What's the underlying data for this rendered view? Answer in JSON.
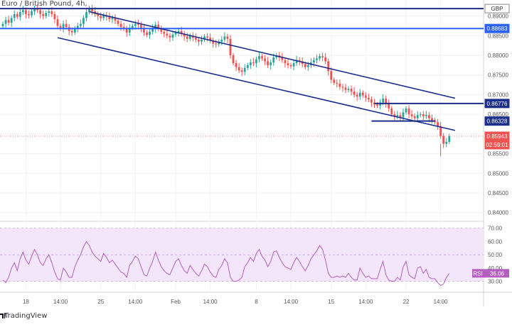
{
  "header": {
    "title": "Euro / British Pound, 4h,"
  },
  "footer": {
    "brand": "TradingView"
  },
  "colors": {
    "up": "#26a69a",
    "down": "#ef5350",
    "channel": "#1b2e8a",
    "hline_blue": "#2962ff",
    "hline_navy": "#1b2e8a",
    "rsi_line": "#b45fc0",
    "rsi_band": "#f3e6fb",
    "current_price": "#ef5350"
  },
  "chart_data": [
    {
      "type": "candlestick",
      "title": "Euro / British Pound, 4h,",
      "y_axis": {
        "ticks": [
          0.89,
          0.885,
          0.88,
          0.875,
          0.87,
          0.865,
          0.86,
          0.855,
          0.85,
          0.845,
          0.84
        ],
        "tick_labels": [
          "0.89000",
          "0.88500",
          "0.88000",
          "0.87500",
          "0.87000",
          "0.86500",
          "0.86000",
          "0.85500",
          "0.85000",
          "0.84500",
          "0.84000"
        ],
        "range": [
          0.8385,
          0.893
        ]
      },
      "x_axis": {
        "tick_labels": [
          "18",
          "14:00",
          "25",
          "14:00",
          "Feb",
          "14:00",
          "8",
          "14:00",
          "15",
          "14:00",
          "22",
          "14:00"
        ]
      },
      "price_labels": [
        {
          "label": "GBP",
          "kind": "currency"
        },
        {
          "label": "0.88683",
          "value": 0.88683,
          "kind": "hline_blue"
        },
        {
          "label": "0.86776",
          "value": 0.86776,
          "kind": "hline_navy"
        },
        {
          "label": "0.86328",
          "value": 0.86328,
          "kind": "hline_navy"
        },
        {
          "label": "0.85943",
          "value": 0.85943,
          "kind": "current"
        },
        {
          "label": "02:59:01",
          "kind": "countdown"
        }
      ],
      "horizontal_lines": [
        {
          "value": 0.8919,
          "color": "navy"
        },
        {
          "value": 0.88683,
          "color": "blue"
        },
        {
          "value": 0.86776,
          "color": "navy",
          "from_bar": 129
        },
        {
          "value": 0.86328,
          "color": "navy",
          "from_bar": 128,
          "to_bar": 150
        }
      ],
      "channel": {
        "upper": [
          {
            "bar": 30,
            "y": 0.8911
          },
          {
            "bar": 157,
            "y": 0.8691
          }
        ],
        "lower": [
          {
            "bar": 19,
            "y": 0.8845
          },
          {
            "bar": 157,
            "y": 0.8609
          }
        ]
      },
      "closes": [
        0.888,
        0.889,
        0.8883,
        0.8895,
        0.8905,
        0.8898,
        0.891,
        0.8915,
        0.8905,
        0.8902,
        0.8912,
        0.8918,
        0.8915,
        0.8905,
        0.89,
        0.8908,
        0.8912,
        0.8905,
        0.8892,
        0.8875,
        0.8868,
        0.888,
        0.8872,
        0.8862,
        0.8858,
        0.8868,
        0.8875,
        0.888,
        0.8895,
        0.891,
        0.892,
        0.8912,
        0.8905,
        0.89,
        0.8895,
        0.8902,
        0.8898,
        0.8892,
        0.8895,
        0.8888,
        0.888,
        0.8872,
        0.8868,
        0.8858,
        0.887,
        0.8875,
        0.888,
        0.8878,
        0.887,
        0.8858,
        0.8852,
        0.886,
        0.8868,
        0.8878,
        0.887,
        0.886,
        0.8855,
        0.885,
        0.8845,
        0.8853,
        0.8858,
        0.8862,
        0.8855,
        0.8848,
        0.8842,
        0.885,
        0.8845,
        0.884,
        0.8835,
        0.884,
        0.8848,
        0.8845,
        0.8838,
        0.883,
        0.8828,
        0.8835,
        0.884,
        0.8848,
        0.8842,
        0.88,
        0.878,
        0.877,
        0.8762,
        0.8758,
        0.8768,
        0.8775,
        0.8782,
        0.878,
        0.879,
        0.8798,
        0.8792,
        0.8785,
        0.8775,
        0.8782,
        0.8795,
        0.88,
        0.8795,
        0.8788,
        0.878,
        0.8775,
        0.8772,
        0.878,
        0.8788,
        0.8785,
        0.8778,
        0.877,
        0.8775,
        0.8782,
        0.8788,
        0.8792,
        0.8798,
        0.8795,
        0.8785,
        0.876,
        0.8738,
        0.873,
        0.8728,
        0.872,
        0.8718,
        0.8712,
        0.8715,
        0.8708,
        0.87,
        0.8695,
        0.8705,
        0.8698,
        0.8692,
        0.8688,
        0.868,
        0.8675,
        0.8672,
        0.868,
        0.869,
        0.8678,
        0.8665,
        0.865,
        0.8645,
        0.8648,
        0.8642,
        0.8655,
        0.8665,
        0.865,
        0.8645,
        0.864,
        0.8648,
        0.865,
        0.8645,
        0.8648,
        0.864,
        0.8635,
        0.863,
        0.862,
        0.8595,
        0.8575,
        0.858,
        0.8594
      ],
      "highs_lows_note": "",
      "rsi": {
        "label": "RSI",
        "value": 36.06,
        "ticks": [
          70,
          60,
          50,
          40,
          30
        ],
        "tick_labels": [
          "70.00",
          "60.00",
          "50.00",
          "40.00",
          "30.00"
        ],
        "band": [
          30,
          70
        ],
        "range": [
          25,
          72
        ],
        "values": [
          31,
          29,
          33,
          40,
          44,
          38,
          47,
          52,
          46,
          43,
          49,
          54,
          50,
          44,
          42,
          47,
          50,
          44,
          37,
          32,
          31,
          40,
          37,
          33,
          33,
          41,
          46,
          50,
          56,
          60,
          57,
          52,
          49,
          47,
          45,
          51,
          48,
          44,
          46,
          43,
          40,
          37,
          36,
          33,
          42,
          45,
          49,
          47,
          41,
          35,
          34,
          40,
          45,
          52,
          46,
          41,
          38,
          36,
          35,
          40,
          45,
          47,
          42,
          38,
          36,
          42,
          39,
          36,
          34,
          38,
          43,
          41,
          37,
          34,
          33,
          39,
          42,
          47,
          44,
          33,
          30,
          30,
          31,
          33,
          41,
          44,
          48,
          45,
          51,
          54,
          49,
          46,
          41,
          45,
          52,
          53,
          48,
          44,
          41,
          40,
          39,
          44,
          48,
          45,
          41,
          38,
          42,
          47,
          50,
          53,
          57,
          54,
          46,
          36,
          33,
          33,
          34,
          33,
          34,
          33,
          36,
          33,
          31,
          31,
          40,
          36,
          33,
          34,
          32,
          32,
          32,
          39,
          45,
          35,
          31,
          30,
          30,
          33,
          31,
          41,
          45,
          35,
          33,
          32,
          40,
          41,
          36,
          39,
          33,
          32,
          32,
          29,
          27,
          28,
          33,
          36
        ]
      }
    }
  ]
}
